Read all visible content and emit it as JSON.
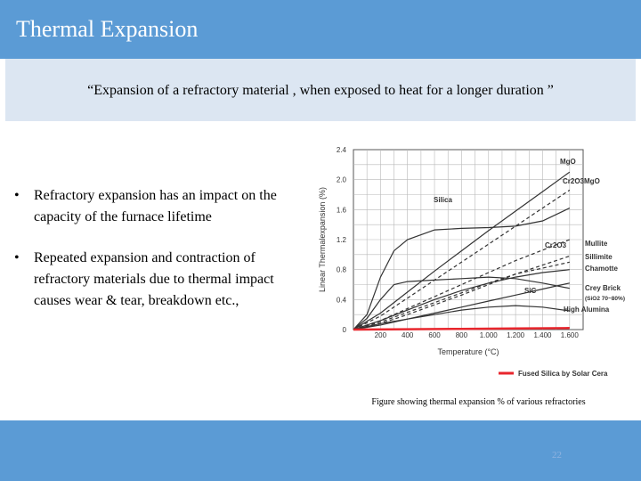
{
  "slide": {
    "title": "Thermal Expansion",
    "quote": "“Expansion of a refractory material , when exposed to heat for a longer duration ”",
    "bullets": [
      "Refractory expansion has an impact on the capacity of the furnace lifetime",
      "Repeated expansion and contraction of refractory materials due to thermal impact causes wear & tear, breakdown etc.,"
    ],
    "bullet_glyph": "•",
    "caption": "Figure showing thermal expansion % of various refractories",
    "page_number": "22"
  },
  "colors": {
    "title_bar": "#5b9bd5",
    "quote_box": "#dce6f2",
    "grid": "#b8b8b8",
    "curve": "#333333",
    "fused_silica": "#e8262d"
  },
  "chart_data": {
    "type": "line",
    "xlabel": "Temperature (°C)",
    "ylabel": "Linear Thermalexpansion (%)",
    "xlim": [
      0,
      1700
    ],
    "ylim": [
      0,
      2.4
    ],
    "x_ticks": [
      200,
      400,
      600,
      800,
      1000,
      1200,
      1400,
      1600
    ],
    "x_tick_labels": [
      "200",
      "400",
      "600",
      "800",
      "1.000",
      "1.200",
      "1.400",
      "1.600"
    ],
    "y_ticks": [
      0,
      0.4,
      0.8,
      1.2,
      1.6,
      2.0,
      2.4
    ],
    "y_tick_labels": [
      "0",
      "0.4",
      "0.8",
      "1.2",
      "1.6",
      "2.0",
      "2.4"
    ],
    "grid": true,
    "series": [
      {
        "name": "MgO",
        "dash": "solid",
        "x": [
          0,
          200,
          400,
          600,
          800,
          1000,
          1200,
          1400,
          1600
        ],
        "y": [
          0,
          0.22,
          0.5,
          0.78,
          1.05,
          1.32,
          1.58,
          1.84,
          2.1
        ]
      },
      {
        "name": "Cr2O3MgO",
        "dash": "dashed",
        "x": [
          0,
          200,
          400,
          600,
          800,
          1000,
          1200,
          1400,
          1600
        ],
        "y": [
          0,
          0.18,
          0.42,
          0.66,
          0.9,
          1.14,
          1.38,
          1.62,
          1.86
        ]
      },
      {
        "name": "Silica",
        "dash": "solid",
        "x": [
          0,
          100,
          200,
          300,
          400,
          600,
          800,
          1000,
          1200,
          1400,
          1600
        ],
        "y": [
          0,
          0.2,
          0.7,
          1.05,
          1.2,
          1.33,
          1.35,
          1.36,
          1.38,
          1.45,
          1.62
        ]
      },
      {
        "name": "Cr2O3",
        "dash": "dashed",
        "x": [
          0,
          200,
          400,
          600,
          800,
          1000,
          1200,
          1400,
          1600
        ],
        "y": [
          0,
          0.12,
          0.28,
          0.44,
          0.6,
          0.76,
          0.92,
          1.06,
          1.2
        ]
      },
      {
        "name": "Mullite",
        "dash": "dashed",
        "x": [
          0,
          200,
          400,
          600,
          800,
          1000,
          1200,
          1400,
          1600
        ],
        "y": [
          0,
          0.08,
          0.2,
          0.33,
          0.46,
          0.6,
          0.74,
          0.86,
          0.98
        ]
      },
      {
        "name": "Sillimite",
        "dash": "dashed",
        "x": [
          0,
          200,
          400,
          600,
          800,
          1000,
          1200,
          1400,
          1600
        ],
        "y": [
          0,
          0.1,
          0.23,
          0.36,
          0.49,
          0.62,
          0.74,
          0.82,
          0.9
        ]
      },
      {
        "name": "Chamotte",
        "dash": "solid",
        "x": [
          0,
          200,
          400,
          600,
          800,
          1000,
          1200,
          1400,
          1600
        ],
        "y": [
          0,
          0.12,
          0.26,
          0.4,
          0.52,
          0.62,
          0.7,
          0.76,
          0.8
        ]
      },
      {
        "name": "SiC",
        "dash": "solid",
        "x": [
          0,
          200,
          400,
          600,
          800,
          1000,
          1200,
          1400,
          1600
        ],
        "y": [
          0,
          0.06,
          0.14,
          0.22,
          0.3,
          0.38,
          0.46,
          0.54,
          0.62
        ]
      },
      {
        "name": "Crey Brick (SiO2 70~80%)",
        "dash": "solid",
        "x": [
          0,
          100,
          200,
          300,
          400,
          600,
          800,
          1000,
          1200,
          1400,
          1600
        ],
        "y": [
          0,
          0.15,
          0.4,
          0.6,
          0.64,
          0.66,
          0.68,
          0.7,
          0.68,
          0.62,
          0.55
        ]
      },
      {
        "name": "High Alumina",
        "dash": "solid",
        "x": [
          0,
          200,
          400,
          600,
          800,
          1000,
          1200,
          1400,
          1600
        ],
        "y": [
          0,
          0.08,
          0.14,
          0.2,
          0.26,
          0.3,
          0.32,
          0.3,
          0.25
        ]
      },
      {
        "name": "Fused Silica by Solar Cera",
        "dash": "solid",
        "color": "#e8262d",
        "x": [
          0,
          400,
          800,
          1200,
          1600
        ],
        "y": [
          0,
          0.005,
          0.01,
          0.015,
          0.02
        ]
      }
    ],
    "curve_labels": [
      {
        "text": "MgO",
        "series": "MgO"
      },
      {
        "text": "Cr2O3MgO",
        "series": "Cr2O3MgO"
      },
      {
        "text": "Silica",
        "series": "Silica"
      },
      {
        "text": "Cr2O3",
        "series": "Cr2O3"
      },
      {
        "text": "Mullite",
        "series": "Mullite"
      },
      {
        "text": "Sillimite",
        "series": "Sillimite"
      },
      {
        "text": "Chamotte",
        "series": "Chamotte"
      },
      {
        "text": "SiC",
        "series": "SiC"
      },
      {
        "text": "Crey Brick",
        "series": "Crey Brick (SiO2 70~80%)"
      },
      {
        "text": "(SiO2 70~80%)",
        "series": "Crey Brick (SiO2 70~80%)"
      },
      {
        "text": "High Alumina",
        "series": "High Alumina"
      }
    ],
    "legend": {
      "text": "Fused Silica by Solar Cera",
      "placement": "bottom-right"
    }
  }
}
